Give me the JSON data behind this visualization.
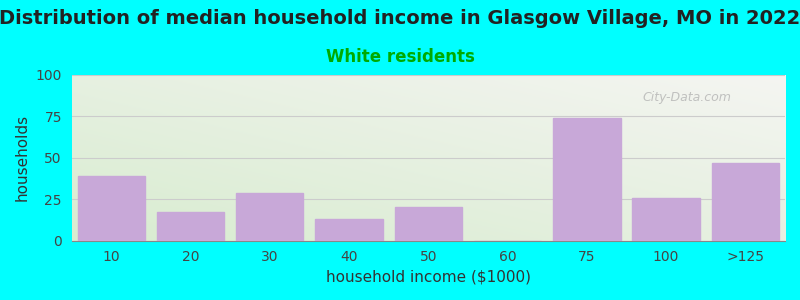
{
  "title": "Distribution of median household income in Glasgow Village, MO in 2022",
  "subtitle": "White residents",
  "xlabel": "household income ($1000)",
  "ylabel": "households",
  "categories": [
    "10",
    "20",
    "30",
    "40",
    "50",
    "60",
    "75",
    "100",
    ">125"
  ],
  "values": [
    39,
    17,
    29,
    13,
    20,
    0,
    74,
    26,
    47
  ],
  "bar_color": "#c8a8d8",
  "ylim": [
    0,
    100
  ],
  "yticks": [
    0,
    25,
    50,
    75,
    100
  ],
  "background_color": "#00FFFF",
  "plot_bg_left_bottom": "#d8ecd0",
  "plot_bg_right_top": "#f5f5f2",
  "title_fontsize": 14,
  "subtitle_fontsize": 12,
  "subtitle_color": "#00aa00",
  "axis_label_fontsize": 11,
  "tick_fontsize": 10,
  "grid_color": "#cccccc",
  "watermark": "City-Data.com"
}
